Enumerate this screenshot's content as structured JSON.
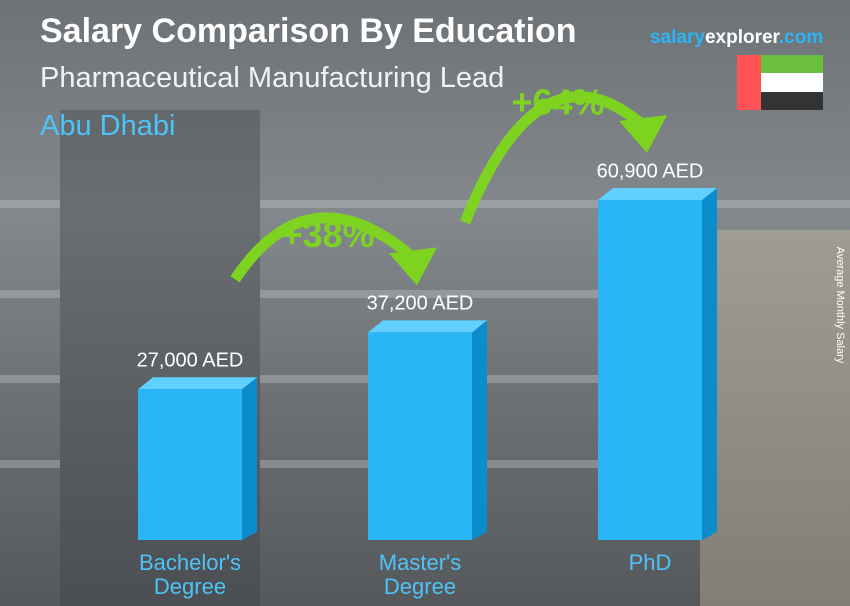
{
  "chart_data": {
    "type": "bar",
    "title": "Salary Comparison By Education",
    "subtitle": "Pharmaceutical Manufacturing Lead",
    "location": "Abu Dhabi",
    "brand": [
      "salary",
      "explorer",
      ".com"
    ],
    "y_axis_label": "Average Monthly Salary",
    "categories": [
      "Bachelor's Degree",
      "Master's Degree",
      "PhD"
    ],
    "values": [
      27000,
      37200,
      60900
    ],
    "value_labels": [
      "27,000 AED",
      "37,200 AED",
      "60,900 AED"
    ],
    "color": "#29b6f6",
    "annotations": [
      "+38%",
      "+64%"
    ]
  }
}
